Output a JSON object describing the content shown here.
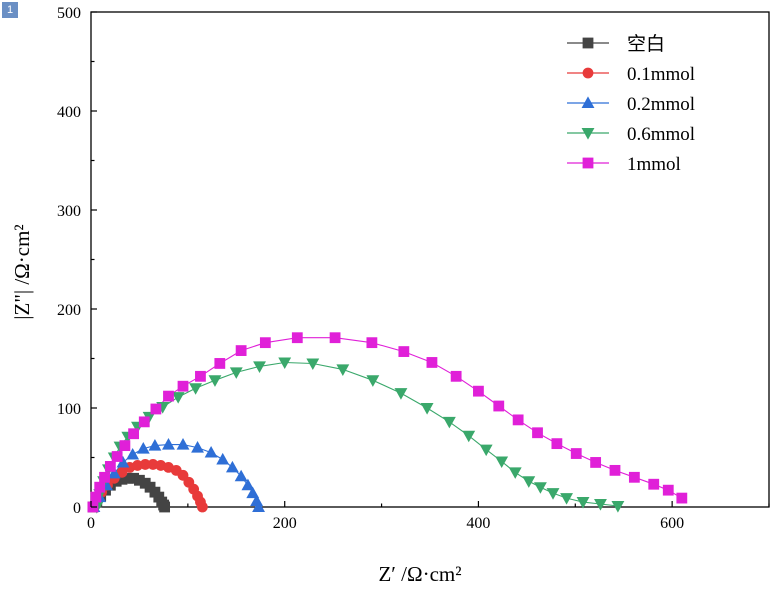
{
  "badge": "1",
  "chart_data": {
    "type": "scatter",
    "xlabel": "Z′ /Ω·cm²",
    "ylabel": "|Z\"| /Ω·cm²",
    "xlim": [
      0,
      700
    ],
    "ylim": [
      0,
      500
    ],
    "x_ticks": [
      0,
      200,
      400,
      600
    ],
    "y_ticks": [
      0,
      100,
      200,
      300,
      400,
      500
    ],
    "grid": false,
    "legend_position": "top-right",
    "series": [
      {
        "name": "空白",
        "color": "#444444",
        "marker": "square",
        "x": [
          2,
          6,
          10,
          15,
          20,
          26,
          32,
          38,
          44,
          50,
          56,
          61,
          66,
          70,
          73,
          75,
          76
        ],
        "y": [
          0,
          5,
          11,
          17,
          22,
          26,
          28,
          29,
          29,
          27,
          24,
          20,
          15,
          10,
          5,
          2,
          0
        ]
      },
      {
        "name": "0.1mmol",
        "color": "#e83a3a",
        "marker": "circle",
        "x": [
          2,
          6,
          11,
          17,
          24,
          32,
          40,
          48,
          56,
          64,
          72,
          80,
          88,
          95,
          101,
          106,
          110,
          113,
          115
        ],
        "y": [
          0,
          7,
          15,
          22,
          29,
          35,
          40,
          42,
          43,
          43,
          42,
          40,
          37,
          32,
          25,
          18,
          11,
          5,
          0
        ]
      },
      {
        "name": "0.2mmol",
        "color": "#2f6fd6",
        "marker": "triangle-up",
        "x": [
          3,
          9,
          16,
          24,
          33,
          43,
          54,
          66,
          80,
          95,
          110,
          124,
          136,
          146,
          155,
          162,
          167,
          171,
          173
        ],
        "y": [
          0,
          10,
          22,
          34,
          45,
          53,
          59,
          62,
          63,
          63,
          60,
          55,
          48,
          40,
          31,
          22,
          14,
          6,
          0
        ]
      },
      {
        "name": "0.6mmol",
        "color": "#3aa86b",
        "marker": "triangle-down",
        "x": [
          6,
          9,
          13,
          18,
          24,
          30,
          38,
          48,
          60,
          74,
          90,
          108,
          128,
          150,
          174,
          200,
          229,
          260,
          291,
          320,
          347,
          370,
          390,
          408,
          424,
          438,
          452,
          464,
          477,
          491,
          508,
          526,
          544
        ],
        "y": [
          0,
          13,
          26,
          38,
          50,
          61,
          71,
          81,
          91,
          101,
          111,
          120,
          128,
          136,
          142,
          146,
          145,
          139,
          128,
          115,
          100,
          86,
          72,
          58,
          46,
          35,
          26,
          20,
          14,
          9,
          5,
          3,
          1
        ]
      },
      {
        "name": "1mmol",
        "color": "#e020d8",
        "marker": "square",
        "x": [
          2,
          5,
          9,
          14,
          20,
          27,
          35,
          44,
          55,
          67,
          80,
          95,
          113,
          133,
          155,
          180,
          213,
          252,
          290,
          323,
          352,
          377,
          400,
          421,
          441,
          461,
          481,
          501,
          521,
          541,
          561,
          581,
          596,
          610
        ],
        "y": [
          0,
          10,
          20,
          30,
          41,
          51,
          62,
          74,
          86,
          99,
          112,
          122,
          132,
          145,
          158,
          166,
          171,
          171,
          166,
          157,
          146,
          132,
          117,
          102,
          88,
          75,
          64,
          54,
          45,
          37,
          30,
          23,
          17,
          9
        ]
      }
    ]
  }
}
